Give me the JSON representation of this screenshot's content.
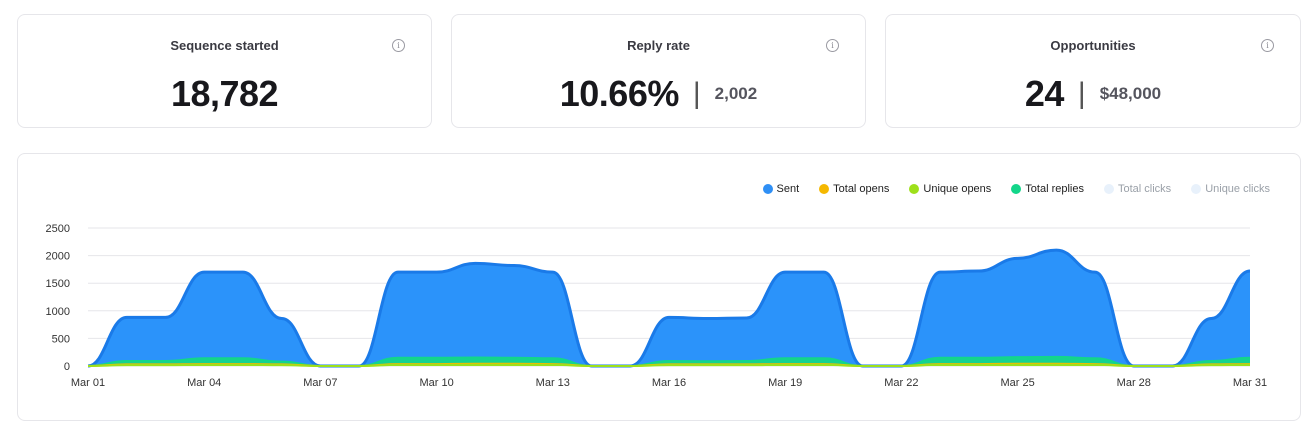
{
  "cards": [
    {
      "title": "Sequence started",
      "value": "18,782",
      "sub": ""
    },
    {
      "title": "Reply rate",
      "value": "10.66%",
      "sub": "2,002"
    },
    {
      "title": "Opportunities",
      "value": "24",
      "sub": "$48,000"
    }
  ],
  "info_icon": "info-icon",
  "chart_data": {
    "type": "area",
    "x": [
      "Mar 01",
      "Mar 02",
      "Mar 03",
      "Mar 04",
      "Mar 05",
      "Mar 06",
      "Mar 07",
      "Mar 08",
      "Mar 09",
      "Mar 10",
      "Mar 11",
      "Mar 12",
      "Mar 13",
      "Mar 14",
      "Mar 15",
      "Mar 16",
      "Mar 17",
      "Mar 18",
      "Mar 19",
      "Mar 20",
      "Mar 21",
      "Mar 22",
      "Mar 23",
      "Mar 24",
      "Mar 25",
      "Mar 26",
      "Mar 27",
      "Mar 28",
      "Mar 29",
      "Mar 30",
      "Mar 31"
    ],
    "xticks": [
      "Mar 01",
      "Mar 04",
      "Mar 07",
      "Mar 10",
      "Mar 13",
      "Mar 16",
      "Mar 19",
      "Mar 22",
      "Mar 25",
      "Mar 28",
      "Mar 31"
    ],
    "yticks": [
      0,
      500,
      1000,
      1500,
      2000,
      2500
    ],
    "ylim": [
      0,
      2500
    ],
    "legend_position": "top-right",
    "grid": true,
    "series": [
      {
        "name": "Sent",
        "color": "#2f8ff5",
        "values": [
          0,
          880,
          880,
          1700,
          1700,
          860,
          0,
          0,
          1700,
          1700,
          1860,
          1820,
          1700,
          0,
          0,
          880,
          860,
          870,
          1700,
          1700,
          0,
          0,
          1700,
          1720,
          1950,
          2100,
          1700,
          0,
          0,
          860,
          1720
        ]
      },
      {
        "name": "Total opens",
        "color": "#f5b800",
        "values": [
          0,
          30,
          30,
          35,
          35,
          30,
          0,
          0,
          35,
          35,
          40,
          40,
          35,
          0,
          0,
          30,
          30,
          30,
          35,
          35,
          0,
          0,
          35,
          35,
          40,
          40,
          35,
          0,
          0,
          30,
          35
        ]
      },
      {
        "name": "Unique opens",
        "color": "#9ee01a",
        "values": [
          0,
          15,
          15,
          20,
          20,
          15,
          0,
          0,
          20,
          20,
          22,
          22,
          20,
          0,
          0,
          15,
          15,
          15,
          20,
          20,
          0,
          0,
          20,
          20,
          22,
          22,
          20,
          0,
          0,
          15,
          20
        ]
      },
      {
        "name": "Total replies",
        "color": "#13d68a",
        "values": [
          0,
          90,
          90,
          140,
          140,
          80,
          0,
          0,
          150,
          150,
          155,
          150,
          140,
          0,
          0,
          90,
          85,
          90,
          140,
          140,
          0,
          0,
          150,
          150,
          160,
          165,
          140,
          0,
          0,
          90,
          150
        ]
      },
      {
        "name": "Total clicks",
        "color": "#e8f1fb",
        "values": [
          0,
          0,
          0,
          0,
          0,
          0,
          0,
          0,
          0,
          0,
          0,
          0,
          0,
          0,
          0,
          0,
          0,
          0,
          0,
          0,
          0,
          0,
          0,
          0,
          0,
          0,
          0,
          0,
          0,
          0,
          0
        ]
      },
      {
        "name": "Unique clicks",
        "color": "#e8f1fb",
        "values": [
          0,
          0,
          0,
          0,
          0,
          0,
          0,
          0,
          0,
          0,
          0,
          0,
          0,
          0,
          0,
          0,
          0,
          0,
          0,
          0,
          0,
          0,
          0,
          0,
          0,
          0,
          0,
          0,
          0,
          0,
          0
        ]
      }
    ]
  }
}
